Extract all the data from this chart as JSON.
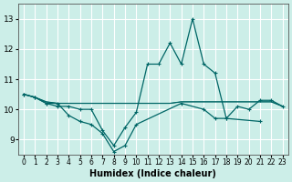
{
  "title": "",
  "xlabel": "Humidex (Indice chaleur)",
  "ylabel": "",
  "background_color": "#cceee8",
  "grid_color": "#ffffff",
  "line_color": "#006666",
  "x": [
    0,
    1,
    2,
    3,
    4,
    5,
    6,
    7,
    8,
    9,
    10,
    11,
    12,
    13,
    14,
    15,
    16,
    17,
    18,
    19,
    20,
    21,
    22,
    23
  ],
  "series": [
    [
      10.5,
      10.4,
      10.2,
      10.1,
      10.1,
      10.0,
      10.0,
      9.3,
      8.8,
      9.4,
      9.9,
      11.5,
      11.5,
      12.2,
      11.5,
      13.0,
      11.5,
      11.2,
      9.7,
      10.1,
      10.0,
      10.3,
      10.3,
      10.1
    ],
    [
      10.5,
      10.4,
      10.2,
      10.2,
      9.8,
      9.6,
      9.5,
      9.2,
      8.6,
      8.8,
      9.5,
      null,
      null,
      null,
      10.2,
      null,
      10.0,
      9.7,
      9.7,
      null,
      null,
      9.6,
      null,
      null
    ],
    [
      10.5,
      10.4,
      10.25,
      10.2,
      10.2,
      10.2,
      10.2,
      10.2,
      10.2,
      10.2,
      10.2,
      10.2,
      10.2,
      10.2,
      10.25,
      10.25,
      10.25,
      10.25,
      10.25,
      10.25,
      10.25,
      10.25,
      10.25,
      10.1
    ],
    [
      10.5,
      10.4,
      10.25,
      10.2,
      10.2,
      10.2,
      10.2,
      10.2,
      10.2,
      10.2,
      10.2,
      10.2,
      10.2,
      10.2,
      10.25,
      10.25,
      10.25,
      10.25,
      10.25,
      10.25,
      10.25,
      10.25,
      10.25,
      10.1
    ]
  ],
  "yticks": [
    9,
    10,
    11,
    12,
    13
  ],
  "ylim": [
    8.5,
    13.5
  ],
  "xlim": [
    -0.5,
    23.5
  ],
  "xtick_labels": [
    "0",
    "1",
    "2",
    "3",
    "4",
    "5",
    "6",
    "7",
    "8",
    "9",
    "10",
    "11",
    "12",
    "13",
    "14",
    "15",
    "16",
    "17",
    "18",
    "19",
    "20",
    "21",
    "22",
    "23"
  ]
}
